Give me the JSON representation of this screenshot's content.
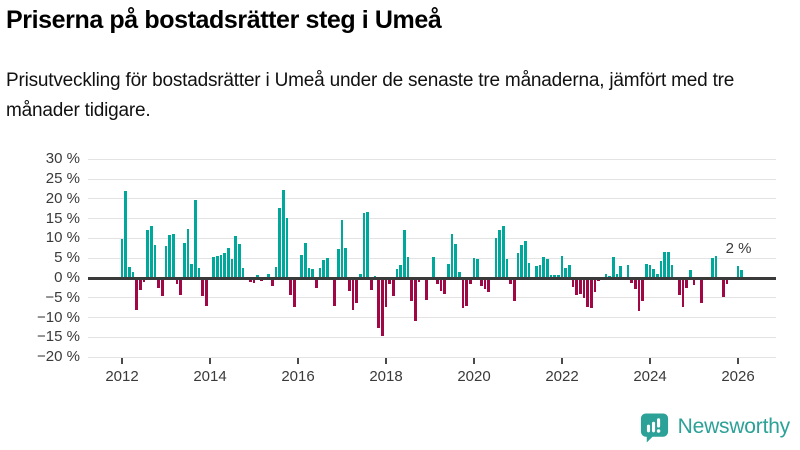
{
  "header": {
    "title": "Priserna på bostadsrätter steg i Umeå",
    "subtitle": "Prisutveckling för bostadsrätter i Umeå under de senaste tre månaderna, jämfört med tre månader tidigare."
  },
  "chart_data": {
    "type": "bar",
    "title": "Priserna på bostadsrätter steg i Umeå",
    "xlabel": "",
    "ylabel": "",
    "unit": "%",
    "ylim": [
      -20,
      30
    ],
    "grid": "horizontal",
    "frequency": "monthly",
    "start": "2012-01",
    "end": "2026-02",
    "y_ticks": [
      30,
      25,
      20,
      15,
      10,
      5,
      0,
      -5,
      -10,
      -15,
      -20
    ],
    "y_tick_labels": [
      "30 %",
      "25 %",
      "20 %",
      "15 %",
      "10 %",
      "5 %",
      "0 %",
      "−5 %",
      "−10 %",
      "−15 %",
      "−20 %"
    ],
    "x_tick_years": [
      2012,
      2014,
      2016,
      2018,
      2020,
      2022,
      2024,
      2026
    ],
    "x_tick_labels": [
      "2012",
      "2014",
      "2016",
      "2018",
      "2020",
      "2022",
      "2024",
      "2026"
    ],
    "annotation": {
      "text": "2 %",
      "value": 2,
      "month": "2026-02"
    },
    "colors": {
      "positive": "#00a79b",
      "negative": "#a00745"
    },
    "series": [
      {
        "year": 2012,
        "values": [
          9.9,
          21.9,
          2.8,
          1.4,
          -8.0,
          -3.1,
          -1.1,
          12.2,
          13.2,
          8.3,
          -2.6,
          -4.5
        ]
      },
      {
        "year": 2013,
        "values": [
          8.0,
          10.9,
          11.2,
          -1.5,
          -4.2,
          8.9,
          12.5,
          3.5,
          19.8,
          2.5,
          -4.5,
          -7.0
        ]
      },
      {
        "year": 2014,
        "values": [
          0.3,
          5.2,
          5.6,
          5.9,
          6.2,
          7.6,
          4.9,
          10.6,
          8.5,
          2.6,
          -0.5,
          -1.0
        ]
      },
      {
        "year": 2015,
        "values": [
          -1.2,
          0.8,
          -0.8,
          0.3,
          1.0,
          -2.1,
          2.7,
          17.6,
          22.1,
          15.1,
          -4.2,
          -7.4
        ]
      },
      {
        "year": 2016,
        "values": [
          0.3,
          5.7,
          8.9,
          2.6,
          2.2,
          -2.6,
          2.4,
          4.5,
          5.1,
          -0.3,
          -7.0,
          7.3
        ]
      },
      {
        "year": 2017,
        "values": [
          14.7,
          7.5,
          -3.2,
          -8.1,
          -6.4,
          1.1,
          16.4,
          16.7,
          -3.1,
          0.4,
          -12.5,
          -14.6
        ]
      },
      {
        "year": 2018,
        "values": [
          -7.4,
          -1.5,
          -4.6,
          2.2,
          3.2,
          12.1,
          5.3,
          -5.7,
          -10.9,
          -1.0,
          0.3,
          -5.5
        ]
      },
      {
        "year": 2019,
        "values": [
          0.2,
          5.4,
          -1.6,
          -3.2,
          -4.0,
          3.6,
          11.0,
          8.7,
          1.5,
          -7.6,
          -7.0,
          -1.4
        ]
      },
      {
        "year": 2020,
        "values": [
          5.1,
          4.9,
          -2.0,
          -2.7,
          -3.6,
          0.3,
          10.1,
          12.1,
          13.1,
          4.9,
          -1.4,
          -5.8
        ]
      },
      {
        "year": 2021,
        "values": [
          6.2,
          8.3,
          9.4,
          3.8,
          0.3,
          3.0,
          3.2,
          5.2,
          4.7,
          0.7,
          0.7,
          0.7
        ]
      },
      {
        "year": 2022,
        "values": [
          5.5,
          2.6,
          3.2,
          -2.3,
          -4.4,
          -4.0,
          -5.0,
          -7.3,
          -7.5,
          -3.5,
          -0.8,
          0.3
        ]
      },
      {
        "year": 2023,
        "values": [
          0.9,
          0.4,
          5.2,
          1.0,
          3.0,
          0.3,
          3.2,
          -1.3,
          -2.8,
          -8.4,
          -5.9,
          3.5
        ]
      },
      {
        "year": 2024,
        "values": [
          3.2,
          2.3,
          0.9,
          4.3,
          6.5,
          6.5,
          3.3,
          0.2,
          -4.3,
          -7.3,
          -2.5,
          2.0
        ]
      },
      {
        "year": 2025,
        "values": [
          -1.8,
          -0.3,
          -6.4,
          0.2,
          0.3,
          5.0,
          5.6,
          0.3,
          -4.7,
          -1.5,
          0.2,
          0.3
        ]
      },
      {
        "year": 2026,
        "values": [
          3.0,
          2.0
        ]
      }
    ]
  },
  "footer": {
    "brand": "Newsworthy"
  }
}
